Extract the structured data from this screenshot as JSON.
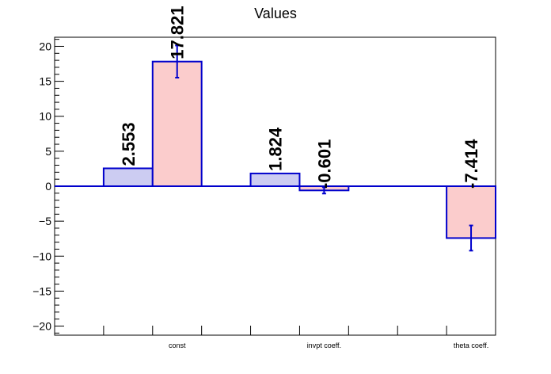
{
  "chart_data": {
    "type": "bar",
    "title": "Values",
    "categories": [
      "const",
      "invpt coeff.",
      "theta coeff."
    ],
    "series": [
      {
        "values": [
          2.553,
          1.824,
          null
        ],
        "errors": [
          null,
          null,
          null
        ],
        "labels": [
          "2.553",
          "1.824",
          ""
        ],
        "fill": "#ccccf2",
        "stroke": "#0000cc"
      },
      {
        "values": [
          17.821,
          -0.601,
          -7.414
        ],
        "errors": [
          2.3,
          0.45,
          1.8
        ],
        "labels": [
          "17.821",
          "-0.601",
          "-7.414"
        ],
        "fill": "#fbcccc",
        "stroke": "#0000cc"
      }
    ],
    "ylim": [
      -21.3,
      21.3
    ],
    "yticks": [
      -20,
      -15,
      -10,
      -5,
      0,
      5,
      10,
      15,
      20
    ],
    "ytick_labels": [
      "−20",
      "−15",
      "−10",
      "−5",
      "0",
      "5",
      "10",
      "15",
      "20"
    ],
    "zero_line_color": "#0000cc",
    "xlabel": "",
    "ylabel": ""
  }
}
